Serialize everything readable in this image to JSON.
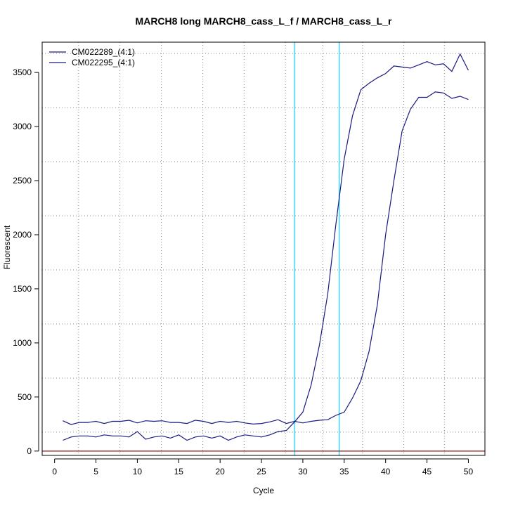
{
  "chart_data": {
    "type": "line",
    "title": "MARCH8 long MARCH8_cass_L_f / MARCH8_cass_L_r",
    "xlabel": "Cycle",
    "ylabel": "Fluorescent",
    "xlim": [
      -1.5,
      52
    ],
    "ylim": [
      -40,
      3780
    ],
    "x_ticks": [
      0,
      5,
      10,
      15,
      20,
      25,
      30,
      35,
      40,
      45,
      50
    ],
    "y_ticks": [
      0,
      500,
      1000,
      1500,
      2000,
      2500,
      3000,
      3500
    ],
    "x_grid": [
      2.9,
      7.9,
      12.9,
      17.9,
      22.9,
      27.9,
      32.4,
      37.2,
      42.2,
      47.1
    ],
    "y_grid": [
      175,
      675,
      1175,
      1675,
      2175,
      2675,
      3175,
      3675
    ],
    "grid": true,
    "legend_position": "top-left",
    "threshold_value": 0,
    "threshold_color": "#8b1a1a",
    "vlines": [
      29.0,
      34.4
    ],
    "vline_color": "#66e0f0",
    "series_color": "#1a1a80",
    "x": [
      1,
      2,
      3,
      4,
      5,
      6,
      7,
      8,
      9,
      10,
      11,
      12,
      13,
      14,
      15,
      16,
      17,
      18,
      19,
      20,
      21,
      22,
      23,
      24,
      25,
      26,
      27,
      28,
      29,
      30,
      31,
      32,
      33,
      34,
      35,
      36,
      37,
      38,
      39,
      40,
      41,
      42,
      43,
      44,
      45,
      46,
      47,
      48,
      49,
      50
    ],
    "series": [
      {
        "name": "CM022289_(4:1)",
        "values": [
          280,
          245,
          265,
          265,
          275,
          255,
          275,
          275,
          285,
          260,
          280,
          275,
          280,
          265,
          265,
          255,
          285,
          275,
          255,
          275,
          265,
          275,
          260,
          250,
          255,
          270,
          290,
          255,
          275,
          260,
          275,
          285,
          290,
          330,
          360,
          490,
          650,
          920,
          1350,
          2000,
          2500,
          2960,
          3160,
          3270,
          3270,
          3320,
          3310,
          3260,
          3280,
          3250
        ]
      },
      {
        "name": "CM022295_(4:1)",
        "values": [
          100,
          130,
          140,
          140,
          130,
          150,
          140,
          140,
          130,
          180,
          110,
          130,
          140,
          120,
          150,
          100,
          130,
          140,
          120,
          140,
          100,
          130,
          150,
          140,
          130,
          150,
          180,
          190,
          270,
          360,
          610,
          980,
          1450,
          2100,
          2700,
          3100,
          3340,
          3400,
          3450,
          3490,
          3560,
          3550,
          3540,
          3570,
          3600,
          3570,
          3580,
          3510,
          3670,
          3520
        ]
      }
    ]
  }
}
